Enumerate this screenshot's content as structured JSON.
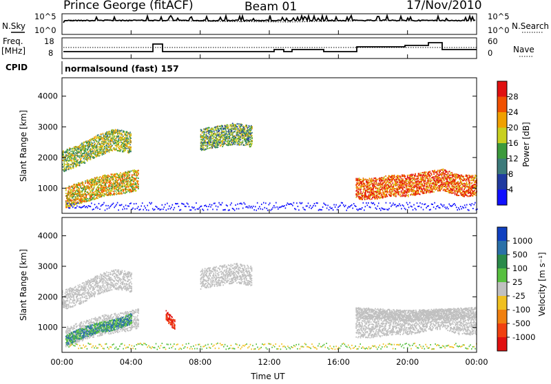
{
  "header": {
    "station": "Prince George (fitACF)",
    "beam": "Beam 01",
    "date": "17/Nov/2010"
  },
  "nsky_panel": {
    "left_label": "N.Sky",
    "left_ticks": [
      "10^5",
      "10^0"
    ],
    "right_ticks": [
      "10^5",
      "10^0"
    ],
    "right_label": "N.Search"
  },
  "freq_panel": {
    "left_label_top": "Freq.",
    "left_label_bottom": "[MHz]",
    "left_ticks": [
      "18",
      "8"
    ],
    "right_ticks": [
      "60",
      "0"
    ],
    "right_label": "Nave"
  },
  "cpid": {
    "label": "CPID",
    "program": "normalsound (fast) 157"
  },
  "power_panel": {
    "ylabel": "Slant Range [km]",
    "yticks": [
      "4000",
      "3000",
      "2000",
      "1000"
    ],
    "colorbar_label": "Power [dB]",
    "colorbar_ticks": [
      "28",
      "24",
      "20",
      "16",
      "12",
      "8",
      "4"
    ],
    "colorbar_colors": [
      "#e01010",
      "#f05000",
      "#f0a000",
      "#c8d020",
      "#3c9a3c",
      "#3c7a7a",
      "#203aa0",
      "#1010ff"
    ]
  },
  "velocity_panel": {
    "ylabel": "Slant Range [km]",
    "yticks": [
      "4000",
      "3000",
      "2000",
      "1000"
    ],
    "colorbar_label": "Velocity [m s⁻¹]",
    "colorbar_ticks": [
      "1000",
      "500",
      "100",
      "25",
      "-25",
      "-100",
      "-500",
      "-1000"
    ],
    "colorbar_colors": [
      "#1040c0",
      "#2a70a8",
      "#2a8a4a",
      "#58c040",
      "#c0c0c0",
      "#f0c020",
      "#f08010",
      "#f04010",
      "#e01010"
    ]
  },
  "xaxis": {
    "label": "Time UT",
    "ticks": [
      "00:00",
      "04:00",
      "08:00",
      "12:00",
      "16:00",
      "20:00",
      "00:00"
    ]
  },
  "chart_data": [
    {
      "type": "heatmap",
      "title": "",
      "ylabel": "Slant Range [km]",
      "ylim": [
        180,
        4600
      ],
      "xlim": [
        "00:00",
        "24:00"
      ],
      "colorbar": "Power [dB]",
      "series": [
        {
          "x": [
            0.0,
            1.0,
            2.0,
            3.0,
            4.0
          ],
          "y": [
            1900,
            2100,
            2400,
            2600,
            2500
          ],
          "value": 16
        },
        {
          "x": [
            0.2,
            1.2,
            2.4,
            3.6,
            4.4
          ],
          "y": [
            700,
            900,
            1100,
            1200,
            1300
          ],
          "value": 20
        },
        {
          "x": [
            17.0,
            18.0,
            19.0,
            20.0,
            21.0,
            22.0,
            23.0,
            24.0
          ],
          "y": [
            1000,
            1000,
            1100,
            1100,
            1200,
            1300,
            1100,
            1100
          ],
          "value": 26
        },
        {
          "x": [
            8.0,
            9.0,
            10.0,
            11.0
          ],
          "y": [
            2600,
            2700,
            2800,
            2700
          ],
          "value": 14
        }
      ]
    },
    {
      "type": "heatmap",
      "title": "",
      "ylabel": "Slant Range [km]",
      "ylim": [
        180,
        4600
      ],
      "xlim": [
        "00:00",
        "24:00"
      ],
      "colorbar": "Velocity [m s⁻¹]",
      "series": [
        {
          "x": [
            0.2,
            1.0,
            2.0,
            3.0,
            4.0
          ],
          "y": [
            600,
            800,
            1000,
            1100,
            1300
          ],
          "value": 100
        },
        {
          "x": [
            6.0,
            6.5
          ],
          "y": [
            1400,
            1100
          ],
          "value": -1000
        },
        {
          "x": [
            17.0,
            20.0,
            24.0
          ],
          "y": [
            1500,
            1400,
            1500
          ],
          "value": 0
        }
      ]
    }
  ]
}
